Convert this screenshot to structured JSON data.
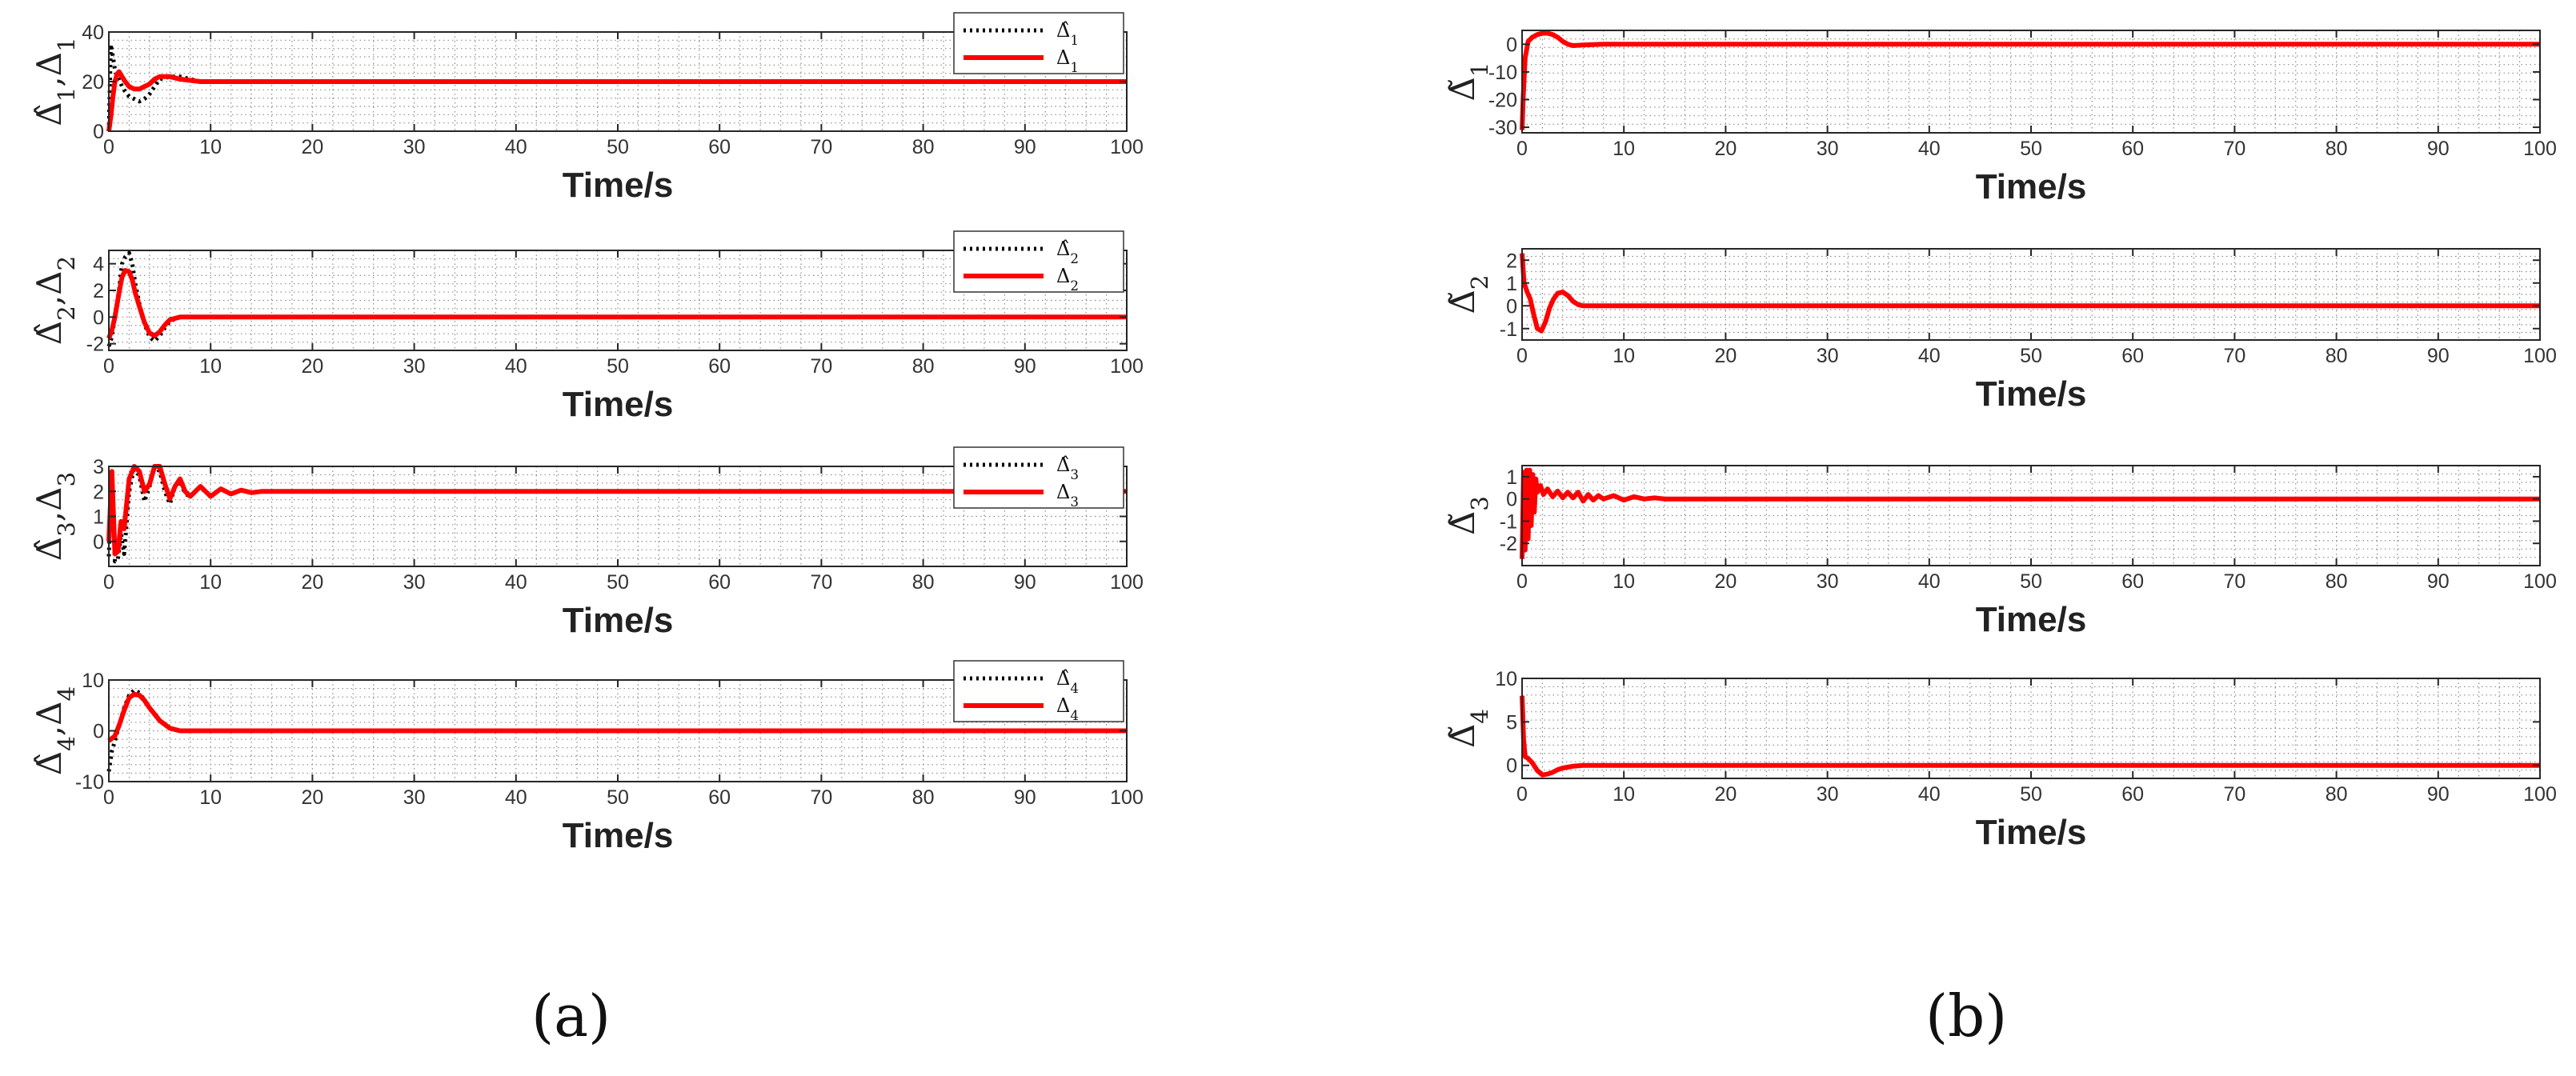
{
  "panels": [
    {
      "label": "(a)"
    },
    {
      "label": "(b)"
    }
  ],
  "colors": {
    "estimate": "#000000",
    "actual": "#ff0000",
    "grid": "#8c8c8c",
    "axes": "#262626"
  },
  "chart_data": [
    {
      "type": "line",
      "panel": "(a)",
      "xlabel": "Time/s",
      "ylabel": "Δ̂1,Δ1",
      "xlim": [
        0,
        100
      ],
      "ylim": [
        0,
        40
      ],
      "xticks": [
        "0",
        "10",
        "20",
        "30",
        "40",
        "50",
        "60",
        "70",
        "80",
        "90",
        "100"
      ],
      "yticks": [
        "0",
        "20",
        "40"
      ],
      "grid": true,
      "legend": "top-right",
      "series": [
        {
          "name": "Δ̂1",
          "style": "dotted",
          "color": "#000000",
          "x": [
            0,
            0.2,
            0.4,
            0.6,
            0.8,
            1,
            1.3,
            1.6,
            2,
            2.5,
            3,
            3.5,
            4,
            4.5,
            5,
            6,
            7,
            8,
            9,
            10,
            12,
            15,
            20,
            30,
            40,
            50,
            60,
            70,
            80,
            90,
            100
          ],
          "y": [
            0,
            35,
            30,
            25,
            22,
            21,
            18,
            16,
            14,
            13,
            12,
            13,
            15,
            18,
            21,
            22,
            22,
            21,
            20,
            20,
            20,
            20,
            20,
            20,
            20,
            20,
            20,
            20,
            20,
            20,
            20
          ]
        },
        {
          "name": "Δ1",
          "style": "solid",
          "color": "#ff0000",
          "x": [
            0,
            0.2,
            0.4,
            0.6,
            0.8,
            1,
            1.3,
            1.6,
            2,
            2.5,
            3,
            3.5,
            4,
            4.5,
            5,
            6,
            7,
            8,
            9,
            10,
            12,
            15,
            20,
            30,
            40,
            50,
            60,
            70,
            80,
            90,
            100
          ],
          "y": [
            0,
            6,
            14,
            20,
            23,
            24,
            22,
            20,
            18,
            17,
            17,
            18,
            19,
            21,
            22,
            22,
            21,
            20.5,
            20,
            20,
            20,
            20,
            20,
            20,
            20,
            20,
            20,
            20,
            20,
            20,
            20
          ]
        }
      ]
    },
    {
      "type": "line",
      "panel": "(a)",
      "xlabel": "Time/s",
      "ylabel": "Δ̂2,Δ2",
      "xlim": [
        0,
        100
      ],
      "ylim": [
        -2.5,
        5
      ],
      "xticks": [
        "0",
        "10",
        "20",
        "30",
        "40",
        "50",
        "60",
        "70",
        "80",
        "90",
        "100"
      ],
      "yticks": [
        "-2",
        "0",
        "2",
        "4"
      ],
      "grid": true,
      "legend": "top-right",
      "series": [
        {
          "name": "Δ̂2",
          "style": "dotted",
          "color": "#000000",
          "x": [
            0,
            0.3,
            0.6,
            1,
            1.3,
            1.6,
            2,
            2.3,
            2.6,
            3,
            3.5,
            4,
            4.5,
            5,
            5.5,
            6,
            7,
            8,
            9,
            10,
            15,
            20,
            30,
            40,
            50,
            60,
            70,
            80,
            90,
            100
          ],
          "y": [
            -2.2,
            -1.5,
            0,
            2,
            4,
            4.5,
            4.8,
            4,
            2.5,
            1,
            -0.5,
            -1.5,
            -1.8,
            -1.4,
            -0.8,
            -0.3,
            0,
            0,
            0,
            0,
            0,
            0,
            0,
            0,
            0,
            0,
            0,
            0,
            0,
            0
          ]
        },
        {
          "name": "Δ2",
          "style": "solid",
          "color": "#ff0000",
          "x": [
            0,
            0.3,
            0.6,
            1,
            1.3,
            1.6,
            2,
            2.3,
            2.6,
            3,
            3.5,
            4,
            4.5,
            5,
            5.5,
            6,
            7,
            8,
            9,
            10,
            15,
            20,
            30,
            40,
            50,
            60,
            70,
            80,
            90,
            100
          ],
          "y": [
            -1.6,
            -1,
            0,
            1.8,
            3,
            3.5,
            3.4,
            2.8,
            1.8,
            0.8,
            -0.4,
            -1.2,
            -1.4,
            -1.1,
            -0.6,
            -0.2,
            0,
            0,
            0,
            0,
            0,
            0,
            0,
            0,
            0,
            0,
            0,
            0,
            0,
            0
          ]
        }
      ]
    },
    {
      "type": "line",
      "panel": "(a)",
      "xlabel": "Time/s",
      "ylabel": "Δ̂3,Δ3",
      "xlim": [
        0,
        100
      ],
      "ylim": [
        -1,
        3
      ],
      "xticks": [
        "0",
        "10",
        "20",
        "30",
        "40",
        "50",
        "60",
        "70",
        "80",
        "90",
        "100"
      ],
      "yticks": [
        "0",
        "1",
        "2",
        "3"
      ],
      "grid": true,
      "legend": "top-right",
      "series": [
        {
          "name": "Δ̂3",
          "style": "dotted",
          "color": "#000000",
          "x": [
            0,
            0.3,
            0.6,
            0.9,
            1.2,
            1.5,
            2,
            2.5,
            3,
            3.5,
            4,
            4.5,
            5,
            5.5,
            6,
            6.5,
            7,
            7.5,
            8,
            9,
            10,
            11,
            12,
            13,
            14,
            15,
            20,
            30,
            40,
            50,
            60,
            70,
            80,
            90,
            100
          ],
          "y": [
            -0.6,
            2.8,
            -0.8,
            -0.7,
            0.3,
            -0.5,
            2,
            3,
            2.6,
            1.6,
            2.2,
            3,
            2.8,
            2,
            1.5,
            2.2,
            2.4,
            1.9,
            1.8,
            2.2,
            1.8,
            2.1,
            1.9,
            2.05,
            1.95,
            2,
            2,
            2,
            2,
            2,
            2,
            2,
            2,
            2,
            2
          ]
        },
        {
          "name": "Δ3",
          "style": "solid",
          "color": "#ff0000",
          "x": [
            0,
            0.3,
            0.6,
            0.9,
            1.2,
            1.5,
            2,
            2.5,
            3,
            3.5,
            4,
            4.5,
            5,
            5.5,
            6,
            6.5,
            7,
            7.5,
            8,
            9,
            10,
            11,
            12,
            13,
            14,
            15,
            20,
            30,
            40,
            50,
            60,
            70,
            80,
            90,
            100
          ],
          "y": [
            0,
            2.8,
            -0.5,
            -0.4,
            0.8,
            0.5,
            2.5,
            3,
            2.8,
            2,
            2.3,
            3,
            3,
            2.3,
            1.7,
            2.2,
            2.5,
            2,
            1.8,
            2.2,
            1.8,
            2.1,
            1.9,
            2.05,
            1.95,
            2,
            2,
            2,
            2,
            2,
            2,
            2,
            2,
            2,
            2
          ]
        }
      ]
    },
    {
      "type": "line",
      "panel": "(a)",
      "xlabel": "Time/s",
      "ylabel": "Δ̂4,Δ4",
      "xlim": [
        0,
        100
      ],
      "ylim": [
        -10,
        10
      ],
      "xticks": [
        "0",
        "10",
        "20",
        "30",
        "40",
        "50",
        "60",
        "70",
        "80",
        "90",
        "100"
      ],
      "yticks": [
        "-10",
        "0",
        "10"
      ],
      "grid": true,
      "legend": "top-right",
      "series": [
        {
          "name": "Δ̂4",
          "style": "dotted",
          "color": "#000000",
          "x": [
            0,
            0.3,
            0.6,
            1,
            1.5,
            2,
            2.5,
            3,
            3.5,
            4,
            5,
            6,
            7,
            8,
            10,
            15,
            20,
            30,
            40,
            50,
            60,
            70,
            80,
            90,
            100
          ],
          "y": [
            -8,
            -4,
            -2,
            1,
            4.5,
            7,
            8,
            7.5,
            6,
            4.5,
            2,
            0.5,
            0,
            0,
            0,
            0,
            0,
            0,
            0,
            0,
            0,
            0,
            0,
            0,
            0
          ]
        },
        {
          "name": "Δ4",
          "style": "solid",
          "color": "#ff0000",
          "x": [
            0,
            0.3,
            0.6,
            1,
            1.5,
            2,
            2.5,
            3,
            3.5,
            4,
            5,
            6,
            7,
            8,
            10,
            15,
            20,
            30,
            40,
            50,
            60,
            70,
            80,
            90,
            100
          ],
          "y": [
            -2,
            -1.5,
            -1,
            1,
            4,
            6.5,
            7.2,
            7,
            6,
            4.5,
            2,
            0.5,
            0,
            0,
            0,
            0,
            0,
            0,
            0,
            0,
            0,
            0,
            0,
            0,
            0
          ]
        }
      ]
    },
    {
      "type": "line",
      "panel": "(b)",
      "xlabel": "Time/s",
      "ylabel": "Δ̃1",
      "xlim": [
        0,
        100
      ],
      "ylim": [
        -32,
        5
      ],
      "xticks": [
        "0",
        "10",
        "20",
        "30",
        "40",
        "50",
        "60",
        "70",
        "80",
        "90",
        "100"
      ],
      "yticks": [
        "-30",
        "-20",
        "-10",
        "0"
      ],
      "grid": true,
      "series": [
        {
          "name": "Δ̃1",
          "style": "solid",
          "color": "#ff0000",
          "x": [
            0,
            0.1,
            0.3,
            0.6,
            1,
            1.5,
            2,
            2.5,
            3,
            3.5,
            4,
            4.5,
            5,
            6,
            8,
            10,
            20,
            30,
            40,
            50,
            60,
            70,
            80,
            90,
            100
          ],
          "y": [
            -31,
            -20,
            -5,
            1,
            2.5,
            3.5,
            4,
            4,
            3.5,
            2.5,
            1,
            0,
            -0.5,
            -0.3,
            0,
            0,
            0,
            0,
            0,
            0,
            0,
            0,
            0,
            0,
            0
          ]
        }
      ]
    },
    {
      "type": "line",
      "panel": "(b)",
      "xlabel": "Time/s",
      "ylabel": "Δ̃2",
      "xlim": [
        0,
        100
      ],
      "ylim": [
        -1.5,
        2.5
      ],
      "xticks": [
        "0",
        "10",
        "20",
        "30",
        "40",
        "50",
        "60",
        "70",
        "80",
        "90",
        "100"
      ],
      "yticks": [
        "-1",
        "0",
        "1",
        "2"
      ],
      "grid": true,
      "series": [
        {
          "name": "Δ̃2",
          "style": "solid",
          "color": "#ff0000",
          "x": [
            0,
            0.2,
            0.5,
            0.8,
            1.1,
            1.5,
            1.9,
            2.3,
            2.7,
            3.1,
            3.5,
            4,
            4.5,
            5,
            5.5,
            6,
            7,
            8,
            10,
            20,
            30,
            40,
            50,
            60,
            70,
            80,
            90,
            100
          ],
          "y": [
            2.3,
            1,
            0.6,
            0.3,
            -0.3,
            -1,
            -1.1,
            -0.7,
            -0.1,
            0.3,
            0.55,
            0.6,
            0.45,
            0.2,
            0.05,
            0,
            0,
            0,
            0,
            0,
            0,
            0,
            0,
            0,
            0,
            0,
            0,
            0
          ]
        }
      ]
    },
    {
      "type": "line",
      "panel": "(b)",
      "xlabel": "Time/s",
      "ylabel": "Δ̃3",
      "xlim": [
        0,
        100
      ],
      "ylim": [
        -3,
        1.5
      ],
      "xticks": [
        "0",
        "10",
        "20",
        "30",
        "40",
        "50",
        "60",
        "70",
        "80",
        "90",
        "100"
      ],
      "yticks": [
        "-2",
        "-1",
        "0",
        "1"
      ],
      "grid": true,
      "series": [
        {
          "name": "Δ̃3",
          "style": "solid",
          "color": "#ff0000",
          "x": [
            0,
            0.15,
            0.3,
            0.45,
            0.6,
            0.75,
            0.9,
            1.05,
            1.2,
            1.35,
            1.5,
            1.8,
            2.1,
            2.5,
            3,
            3.5,
            4,
            4.5,
            5,
            5.5,
            6,
            6.5,
            7,
            7.5,
            8,
            9,
            10,
            11,
            12,
            13,
            14,
            15,
            20,
            30,
            40,
            50,
            60,
            70,
            80,
            90,
            100
          ],
          "y": [
            -2.7,
            1.2,
            -2.3,
            1.3,
            -1.8,
            1.3,
            -1.2,
            1.1,
            -0.6,
            0.9,
            0.3,
            0.6,
            0.2,
            0.45,
            0.1,
            0.35,
            0.05,
            0.3,
            0.05,
            0.3,
            -0.1,
            0.2,
            -0.05,
            0.15,
            0,
            0.15,
            -0.05,
            0.1,
            0,
            0.05,
            0,
            0,
            0,
            0,
            0,
            0,
            0,
            0,
            0,
            0,
            0
          ]
        }
      ]
    },
    {
      "type": "line",
      "panel": "(b)",
      "xlabel": "Time/s",
      "ylabel": "Δ̃4",
      "xlim": [
        0,
        100
      ],
      "ylim": [
        -1.5,
        10
      ],
      "xticks": [
        "0",
        "10",
        "20",
        "30",
        "40",
        "50",
        "60",
        "70",
        "80",
        "90",
        "100"
      ],
      "yticks": [
        "0",
        "5",
        "10"
      ],
      "grid": true,
      "series": [
        {
          "name": "Δ̃4",
          "style": "solid",
          "color": "#ff0000",
          "x": [
            0,
            0.15,
            0.3,
            0.6,
            1,
            1.5,
            2,
            2.5,
            3,
            3.5,
            4,
            5,
            6,
            7,
            8,
            10,
            20,
            30,
            40,
            50,
            60,
            70,
            80,
            90,
            100
          ],
          "y": [
            8,
            3,
            1,
            0.8,
            0.3,
            -0.6,
            -1.1,
            -1,
            -0.8,
            -0.5,
            -0.3,
            -0.1,
            0,
            0,
            0,
            0,
            0,
            0,
            0,
            0,
            0,
            0,
            0,
            0,
            0
          ]
        }
      ]
    }
  ]
}
